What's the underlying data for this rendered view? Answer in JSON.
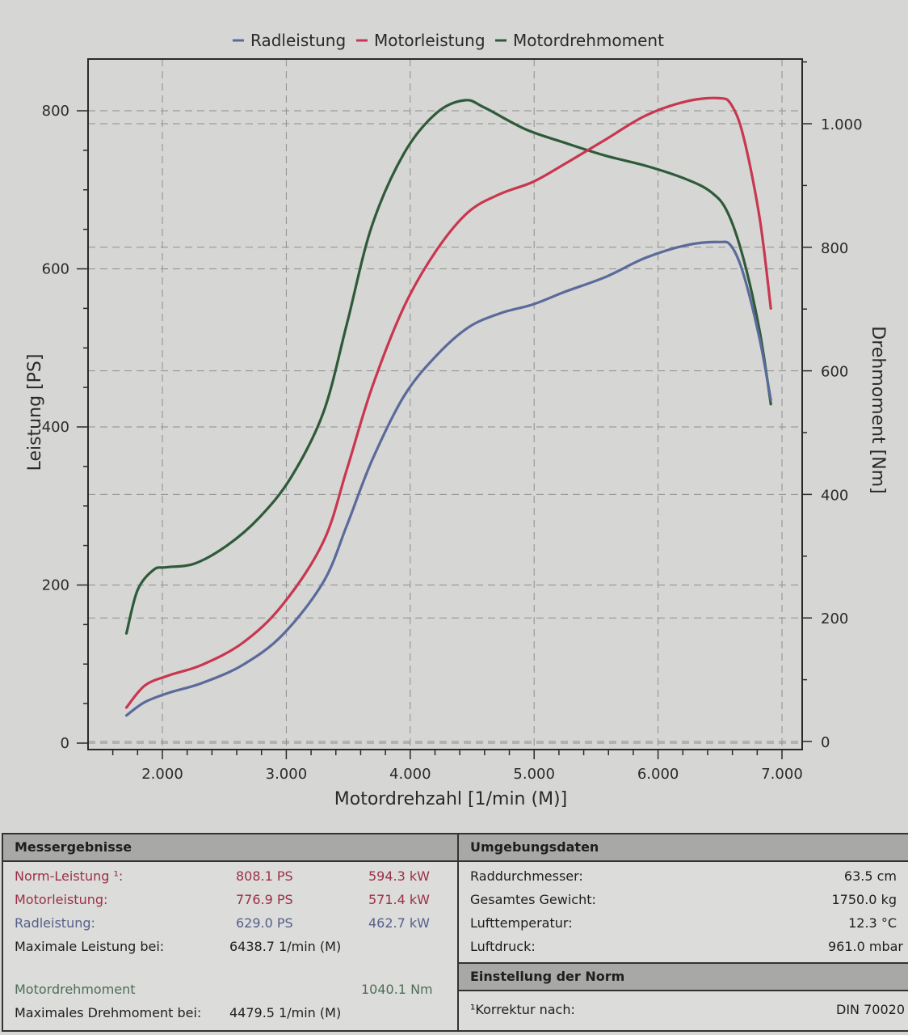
{
  "colors": {
    "radleistung": "#5a6a9a",
    "motorleistung": "#c8374f",
    "motordrehmoment": "#2f5a3a",
    "grid": "#8f8f8f",
    "axis": "#2a2a2a"
  },
  "chart_data": {
    "type": "line",
    "title": "",
    "legend": [
      "Radleistung",
      "Motorleistung",
      "Motordrehmoment"
    ],
    "legend_position": "top",
    "grid": true,
    "xlabel": "Motordrehzahl [1/min (M)]",
    "ylabel": "Leistung [PS]",
    "y2label": "Drehmoment [Nm]",
    "xlim": [
      1400,
      7200
    ],
    "ylim": [
      0,
      870
    ],
    "y2lim": [
      0,
      1130
    ],
    "x_ticks": [
      2000,
      3000,
      4000,
      5000,
      6000,
      7000
    ],
    "x_tick_labels": [
      "2.000",
      "3.000",
      "4.000",
      "5.000",
      "6.000",
      "7.000"
    ],
    "y_ticks": [
      0,
      200,
      400,
      600,
      800
    ],
    "y_tick_labels": [
      "0",
      "200",
      "400",
      "600",
      "800"
    ],
    "y2_ticks": [
      0,
      200,
      400,
      600,
      800,
      1000
    ],
    "y2_tick_labels": [
      "0",
      "200",
      "400",
      "600",
      "800",
      "1.000"
    ],
    "series": [
      {
        "name": "Radleistung",
        "axis": "left",
        "x": [
          1710,
          1860,
          2060,
          2320,
          2650,
          2970,
          3300,
          3490,
          3690,
          3950,
          4210,
          4470,
          4730,
          4990,
          5250,
          5580,
          5900,
          6230,
          6490,
          6590,
          6690,
          6820,
          6910
        ],
        "y": [
          35,
          52,
          64,
          76,
          99,
          137,
          204,
          276,
          357,
          439,
          490,
          526,
          544,
          555,
          571,
          590,
          614,
          630,
          634,
          629,
          593,
          511,
          434
        ]
      },
      {
        "name": "Motorleistung",
        "axis": "left",
        "x": [
          1710,
          1860,
          2060,
          2320,
          2650,
          2970,
          3300,
          3490,
          3690,
          3950,
          4210,
          4470,
          4730,
          4990,
          5250,
          5580,
          5900,
          6230,
          6490,
          6590,
          6690,
          6820,
          6910
        ],
        "y": [
          45,
          73,
          86,
          99,
          127,
          175,
          255,
          347,
          449,
          552,
          623,
          672,
          695,
          710,
          733,
          764,
          794,
          812,
          816,
          808,
          767,
          664,
          550
        ]
      },
      {
        "name": "Motordrehmoment",
        "axis": "right",
        "x": [
          1710,
          1800,
          1930,
          2030,
          2260,
          2520,
          2780,
          3040,
          3300,
          3490,
          3690,
          3950,
          4210,
          4440,
          4600,
          4930,
          5250,
          5580,
          5900,
          6230,
          6430,
          6560,
          6690,
          6820,
          6910
        ],
        "y": [
          175,
          245,
          278,
          282,
          288,
          317,
          362,
          428,
          533,
          677,
          834,
          952,
          1017,
          1038,
          1026,
          991,
          969,
          948,
          932,
          910,
          889,
          857,
          781,
          664,
          546
        ]
      }
    ]
  },
  "results": {
    "header": "Messergebnisse",
    "norm_label": "Norm-Leistung ¹:",
    "norm_ps": "808.1 PS",
    "norm_kw": "594.3 kW",
    "motor_label": "Motorleistung:",
    "motor_ps": "776.9 PS",
    "motor_kw": "571.4 kW",
    "rad_label": "Radleistung:",
    "rad_ps": "629.0 PS",
    "rad_kw": "462.7 kW",
    "max_power_label": "Maximale Leistung bei:",
    "max_power_rpm": "6438.7 1/min (M)",
    "torque_label": "Motordrehmoment",
    "torque_value": "1040.1 Nm",
    "max_torque_label": "Maximales Drehmoment bei:",
    "max_torque_rpm": "4479.5 1/min (M)"
  },
  "environment": {
    "header": "Umgebungsdaten",
    "wheel_label": "Raddurchmesser:",
    "wheel_value": "63.5 cm",
    "weight_label": "Gesamtes Gewicht:",
    "weight_value": "1750.0 kg",
    "temp_label": "Lufttemperatur:",
    "temp_value": "12.3 °C",
    "pressure_label": "Luftdruck:",
    "pressure_value": "961.0 mbar"
  },
  "norm": {
    "header": "Einstellung der Norm",
    "correction_label": "¹Korrektur nach:",
    "correction_value": "DIN 70020"
  }
}
